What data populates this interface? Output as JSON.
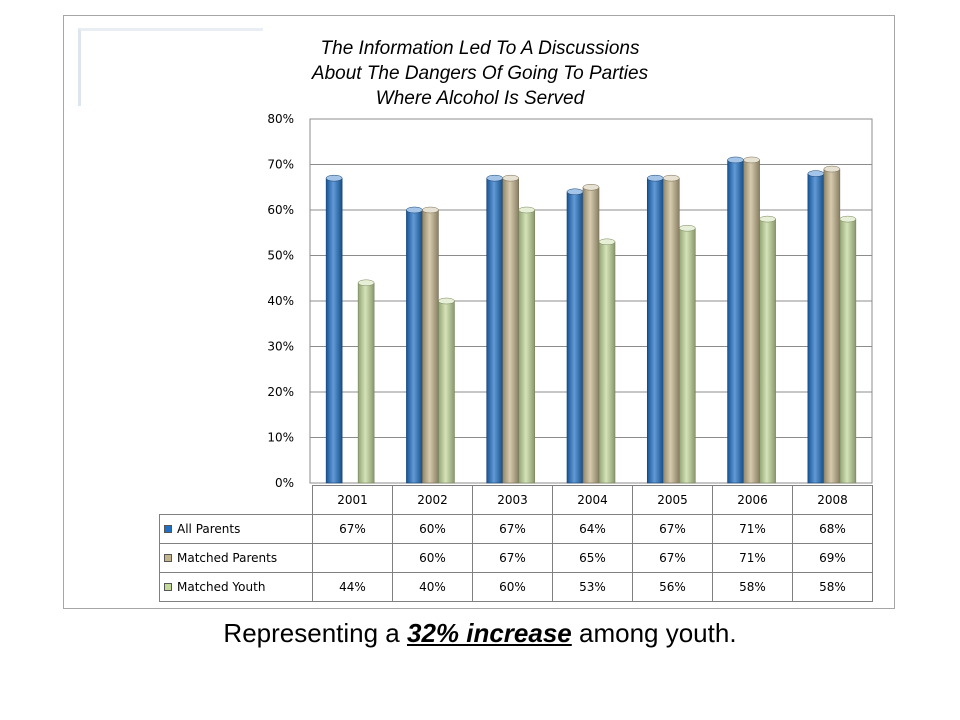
{
  "chart_data": {
    "type": "bar",
    "title": "The Information Led To A Discussions About The Dangers Of Going To Parties Where Alcohol Is Served",
    "categories": [
      "2001",
      "2002",
      "2003",
      "2004",
      "2005",
      "2006",
      "2008"
    ],
    "series": [
      {
        "name": "All Parents",
        "color": "#1f6fc5",
        "values": [
          67,
          60,
          67,
          64,
          67,
          71,
          68
        ]
      },
      {
        "name": "Matched Parents",
        "color": "#c4b48c",
        "values": [
          null,
          60,
          67,
          65,
          67,
          71,
          69
        ]
      },
      {
        "name": "Matched Youth",
        "color": "#c3d99a",
        "values": [
          44,
          40,
          60,
          53,
          56,
          58,
          58
        ]
      }
    ],
    "ylim": [
      0,
      80
    ],
    "yticks": [
      "0%",
      "10%",
      "20%",
      "30%",
      "40%",
      "50%",
      "60%",
      "70%",
      "80%"
    ],
    "grid": true,
    "legend": "data-table",
    "table": [
      [
        "67%",
        "60%",
        "67%",
        "64%",
        "67%",
        "71%",
        "68%"
      ],
      [
        "",
        "60%",
        "67%",
        "65%",
        "67%",
        "71%",
        "69%"
      ],
      [
        "44%",
        "40%",
        "60%",
        "53%",
        "56%",
        "58%",
        "58%"
      ]
    ]
  },
  "caption": {
    "prefix": "Representing a ",
    "emphasis": "32% increase",
    "suffix": " among youth."
  }
}
